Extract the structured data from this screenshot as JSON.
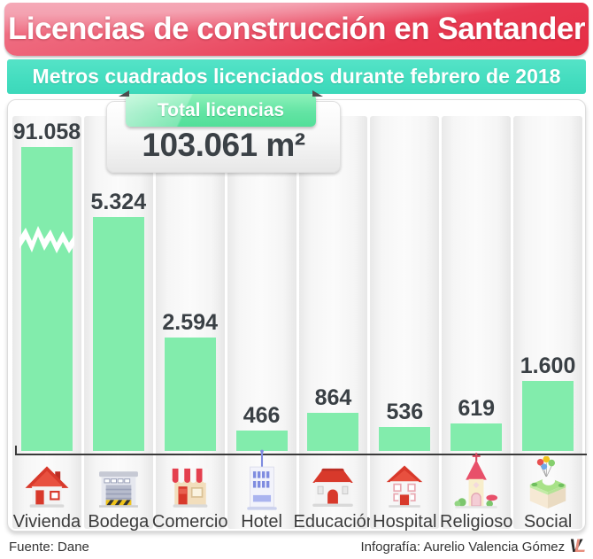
{
  "header": {
    "title": "Licencias de construcción en Santander",
    "subtitle": "Metros cuadrados licenciados durante febrero de 2018"
  },
  "total": {
    "badge_label": "Total licencias",
    "value": "103.061 m²"
  },
  "chart_data": {
    "type": "bar",
    "title": "Licencias de construcción en Santander",
    "subtitle": "Metros cuadrados licenciados durante febrero de 2018",
    "unit": "m²",
    "categories": [
      "Vivienda",
      "Bodega",
      "Comercio",
      "Hotel",
      "Educación",
      "Hospital",
      "Religioso",
      "Social"
    ],
    "values": [
      91058,
      5324,
      2594,
      466,
      864,
      536,
      619,
      1600
    ],
    "value_labels": [
      "91.058",
      "5.324",
      "2.594",
      "466",
      "864",
      "536",
      "619",
      "1.600"
    ],
    "total_value": 103061,
    "total_value_label": "103.061 m²",
    "total_legend": "Total licencias",
    "bar_color": "#82ecac",
    "axis_break_on": "Vivienda",
    "grid": false,
    "legend_position": "none",
    "icons": [
      "house-icon",
      "warehouse-icon",
      "shop-icon",
      "hotel-icon",
      "school-icon",
      "hospital-icon",
      "church-icon",
      "park-icon"
    ]
  },
  "footer": {
    "source": "Fuente: Dane",
    "credit": "Infografía: Aurelio Valencia Gómez",
    "logo_v": "V",
    "logo_l": "L"
  },
  "colors": {
    "banner_red": "#e62e44",
    "banner_pink": "#f4a2b1",
    "band_teal": "#43ddbf",
    "bar_green": "#82ecac",
    "badge_green": "#52df99",
    "text_dark": "#3b4146",
    "axis": "#3a3a3a"
  }
}
